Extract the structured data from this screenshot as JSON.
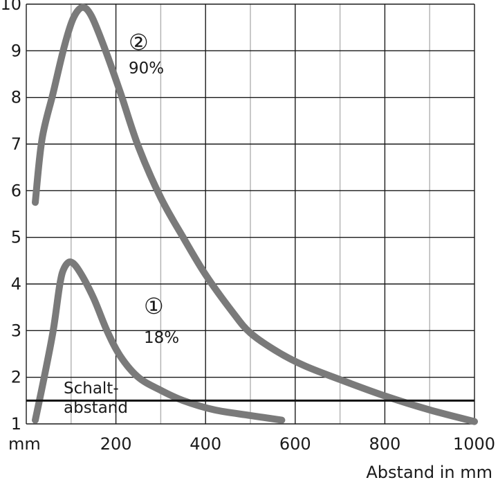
{
  "chart_data": {
    "type": "line",
    "title": "",
    "xlabel": "Abstand in mm",
    "x_unit_label": "mm",
    "ylabel": "",
    "xlim": [
      0,
      1000
    ],
    "ylim": [
      1,
      10
    ],
    "x_ticks": [
      {
        "value": 200,
        "label": "200"
      },
      {
        "value": 400,
        "label": "400"
      },
      {
        "value": 600,
        "label": "600"
      },
      {
        "value": 800,
        "label": "800"
      },
      {
        "value": 1000,
        "label": "1000"
      }
    ],
    "x_minor": [
      100,
      300,
      500,
      700,
      900
    ],
    "y_ticks": [
      {
        "value": 1,
        "label": "1"
      },
      {
        "value": 2,
        "label": "2"
      },
      {
        "value": 3,
        "label": "3"
      },
      {
        "value": 4,
        "label": "4"
      },
      {
        "value": 5,
        "label": "5"
      },
      {
        "value": 6,
        "label": "6"
      },
      {
        "value": 7,
        "label": "7"
      },
      {
        "value": 8,
        "label": "8"
      },
      {
        "value": 9,
        "label": "9"
      },
      {
        "value": 10,
        "label": "10"
      }
    ],
    "grid": true,
    "series": [
      {
        "marker": "②",
        "name": "90%",
        "color": "#7a7a7a",
        "points": [
          [
            20,
            5.75
          ],
          [
            35,
            7.1
          ],
          [
            60,
            8.1
          ],
          [
            85,
            9.1
          ],
          [
            105,
            9.7
          ],
          [
            125,
            9.93
          ],
          [
            145,
            9.75
          ],
          [
            175,
            9.05
          ],
          [
            210,
            8.1
          ],
          [
            250,
            6.95
          ],
          [
            300,
            5.85
          ],
          [
            350,
            5.0
          ],
          [
            400,
            4.2
          ],
          [
            460,
            3.4
          ],
          [
            500,
            2.95
          ],
          [
            560,
            2.55
          ],
          [
            620,
            2.25
          ],
          [
            700,
            1.95
          ],
          [
            800,
            1.6
          ],
          [
            900,
            1.3
          ],
          [
            1000,
            1.05
          ]
        ]
      },
      {
        "marker": "①",
        "name": "18%",
        "color": "#7a7a7a",
        "points": [
          [
            20,
            1.08
          ],
          [
            40,
            2.0
          ],
          [
            60,
            3.0
          ],
          [
            75,
            4.0
          ],
          [
            85,
            4.35
          ],
          [
            100,
            4.47
          ],
          [
            120,
            4.25
          ],
          [
            150,
            3.7
          ],
          [
            180,
            3.0
          ],
          [
            210,
            2.45
          ],
          [
            250,
            2.0
          ],
          [
            300,
            1.72
          ],
          [
            350,
            1.5
          ],
          [
            420,
            1.3
          ],
          [
            500,
            1.18
          ],
          [
            570,
            1.08
          ]
        ]
      }
    ],
    "annotations": [
      {
        "label_lines": [
          "Schalt-",
          "abstand"
        ],
        "type": "hline",
        "y": 1.5
      }
    ]
  }
}
